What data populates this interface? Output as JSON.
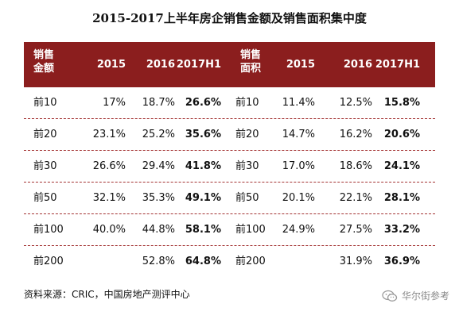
{
  "title": "2015-2017上半年房企销售金额及销售面积集中度",
  "table": {
    "left_header_line1": "销售",
    "left_header_line2": "金额",
    "right_header_line1": "销售",
    "right_header_line2": "面积",
    "years": [
      "2015",
      "2016",
      "2017H1"
    ],
    "rows": [
      {
        "label": "前10",
        "amount": [
          "17%",
          "18.7%",
          "26.6%"
        ],
        "label2": "前10",
        "area": [
          "11.4%",
          "12.5%",
          "15.8%"
        ]
      },
      {
        "label": "前20",
        "amount": [
          "23.1%",
          "25.2%",
          "35.6%"
        ],
        "label2": "前20",
        "area": [
          "14.7%",
          "16.2%",
          "20.6%"
        ]
      },
      {
        "label": "前30",
        "amount": [
          "26.6%",
          "29.4%",
          "41.8%"
        ],
        "label2": "前30",
        "area": [
          "17.0%",
          "18.6%",
          "24.1%"
        ]
      },
      {
        "label": "前50",
        "amount": [
          "32.1%",
          "35.3%",
          "49.1%"
        ],
        "label2": "前50",
        "area": [
          "20.1%",
          "22.1%",
          "28.1%"
        ]
      },
      {
        "label": "前100",
        "amount": [
          "40.0%",
          "44.8%",
          "58.1%"
        ],
        "label2": "前100",
        "area": [
          "24.9%",
          "27.5%",
          "33.2%"
        ]
      },
      {
        "label": "前200",
        "amount": [
          "",
          "52.8%",
          "64.8%"
        ],
        "label2": "前200",
        "area": [
          "",
          "31.9%",
          "36.9%"
        ]
      }
    ]
  },
  "source": "资料来源：CRIC，中国房地产测评中心",
  "watermark": "华尔街参考",
  "colors": {
    "header_bg": "#8b1e1e",
    "divider": "#a33232"
  }
}
